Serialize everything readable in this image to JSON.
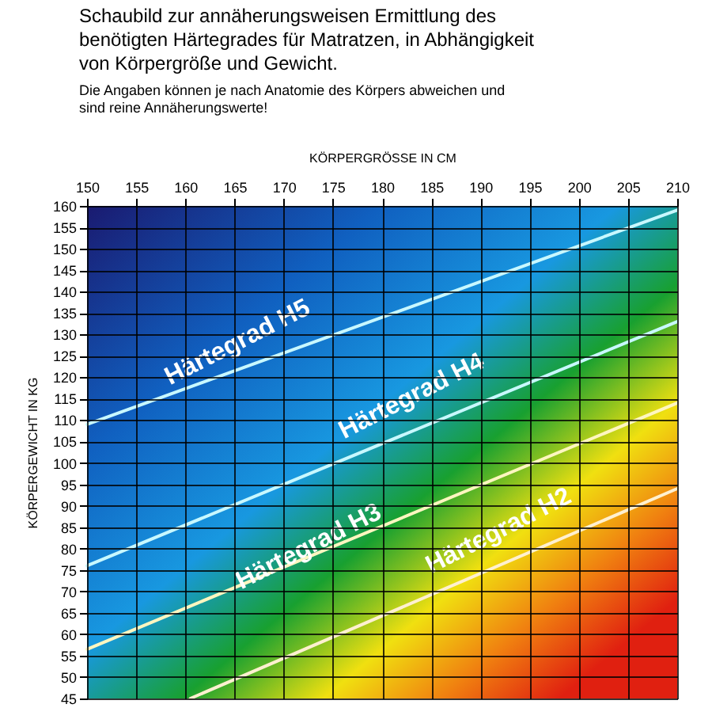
{
  "chart_data": {
    "type": "line",
    "title": [
      "Schaubild zur annäherungsweisen Ermittlung des",
      "benötigten Härtegrades für Matratzen, in Abhängigkeit",
      "von Körpergröße und Gewicht."
    ],
    "subtitle": [
      "Die Angaben können je nach Anatomie des Körpers abweichen und",
      "sind reine Annäherungswerte!"
    ],
    "xlabel": "KÖRPERGRÖSSE IN CM",
    "ylabel": "KÖRPERGEWICHT IN KG",
    "series": [
      {
        "color": "#c8f8ff",
        "x": [
          150,
          210
        ],
        "values": [
          109,
          159
        ]
      },
      {
        "color": "#c8f8ff",
        "x": [
          150,
          210
        ],
        "values": [
          76,
          133
        ]
      },
      {
        "color": "#fff6c0",
        "x": [
          150,
          210
        ],
        "values": [
          56.5,
          114
        ]
      },
      {
        "color": "#fff0d0",
        "x": [
          160.5,
          210
        ],
        "values": [
          45,
          94
        ]
      }
    ],
    "annotations": [
      "Härtegrad H5",
      "Härtegrad H4",
      "Härtegrad H3",
      "Härtegrad H2"
    ],
    "xlim": [
      150,
      210
    ],
    "xticks": [
      150,
      155,
      160,
      165,
      170,
      175,
      180,
      185,
      190,
      195,
      200,
      205,
      210
    ],
    "ylim": [
      45,
      160
    ],
    "yticks": [
      45,
      50,
      55,
      60,
      65,
      70,
      75,
      80,
      85,
      90,
      95,
      100,
      105,
      110,
      115,
      120,
      125,
      130,
      135,
      140,
      145,
      150,
      155,
      160
    ],
    "grid": true,
    "legend": false,
    "marker": "none",
    "line_style": "solid"
  }
}
